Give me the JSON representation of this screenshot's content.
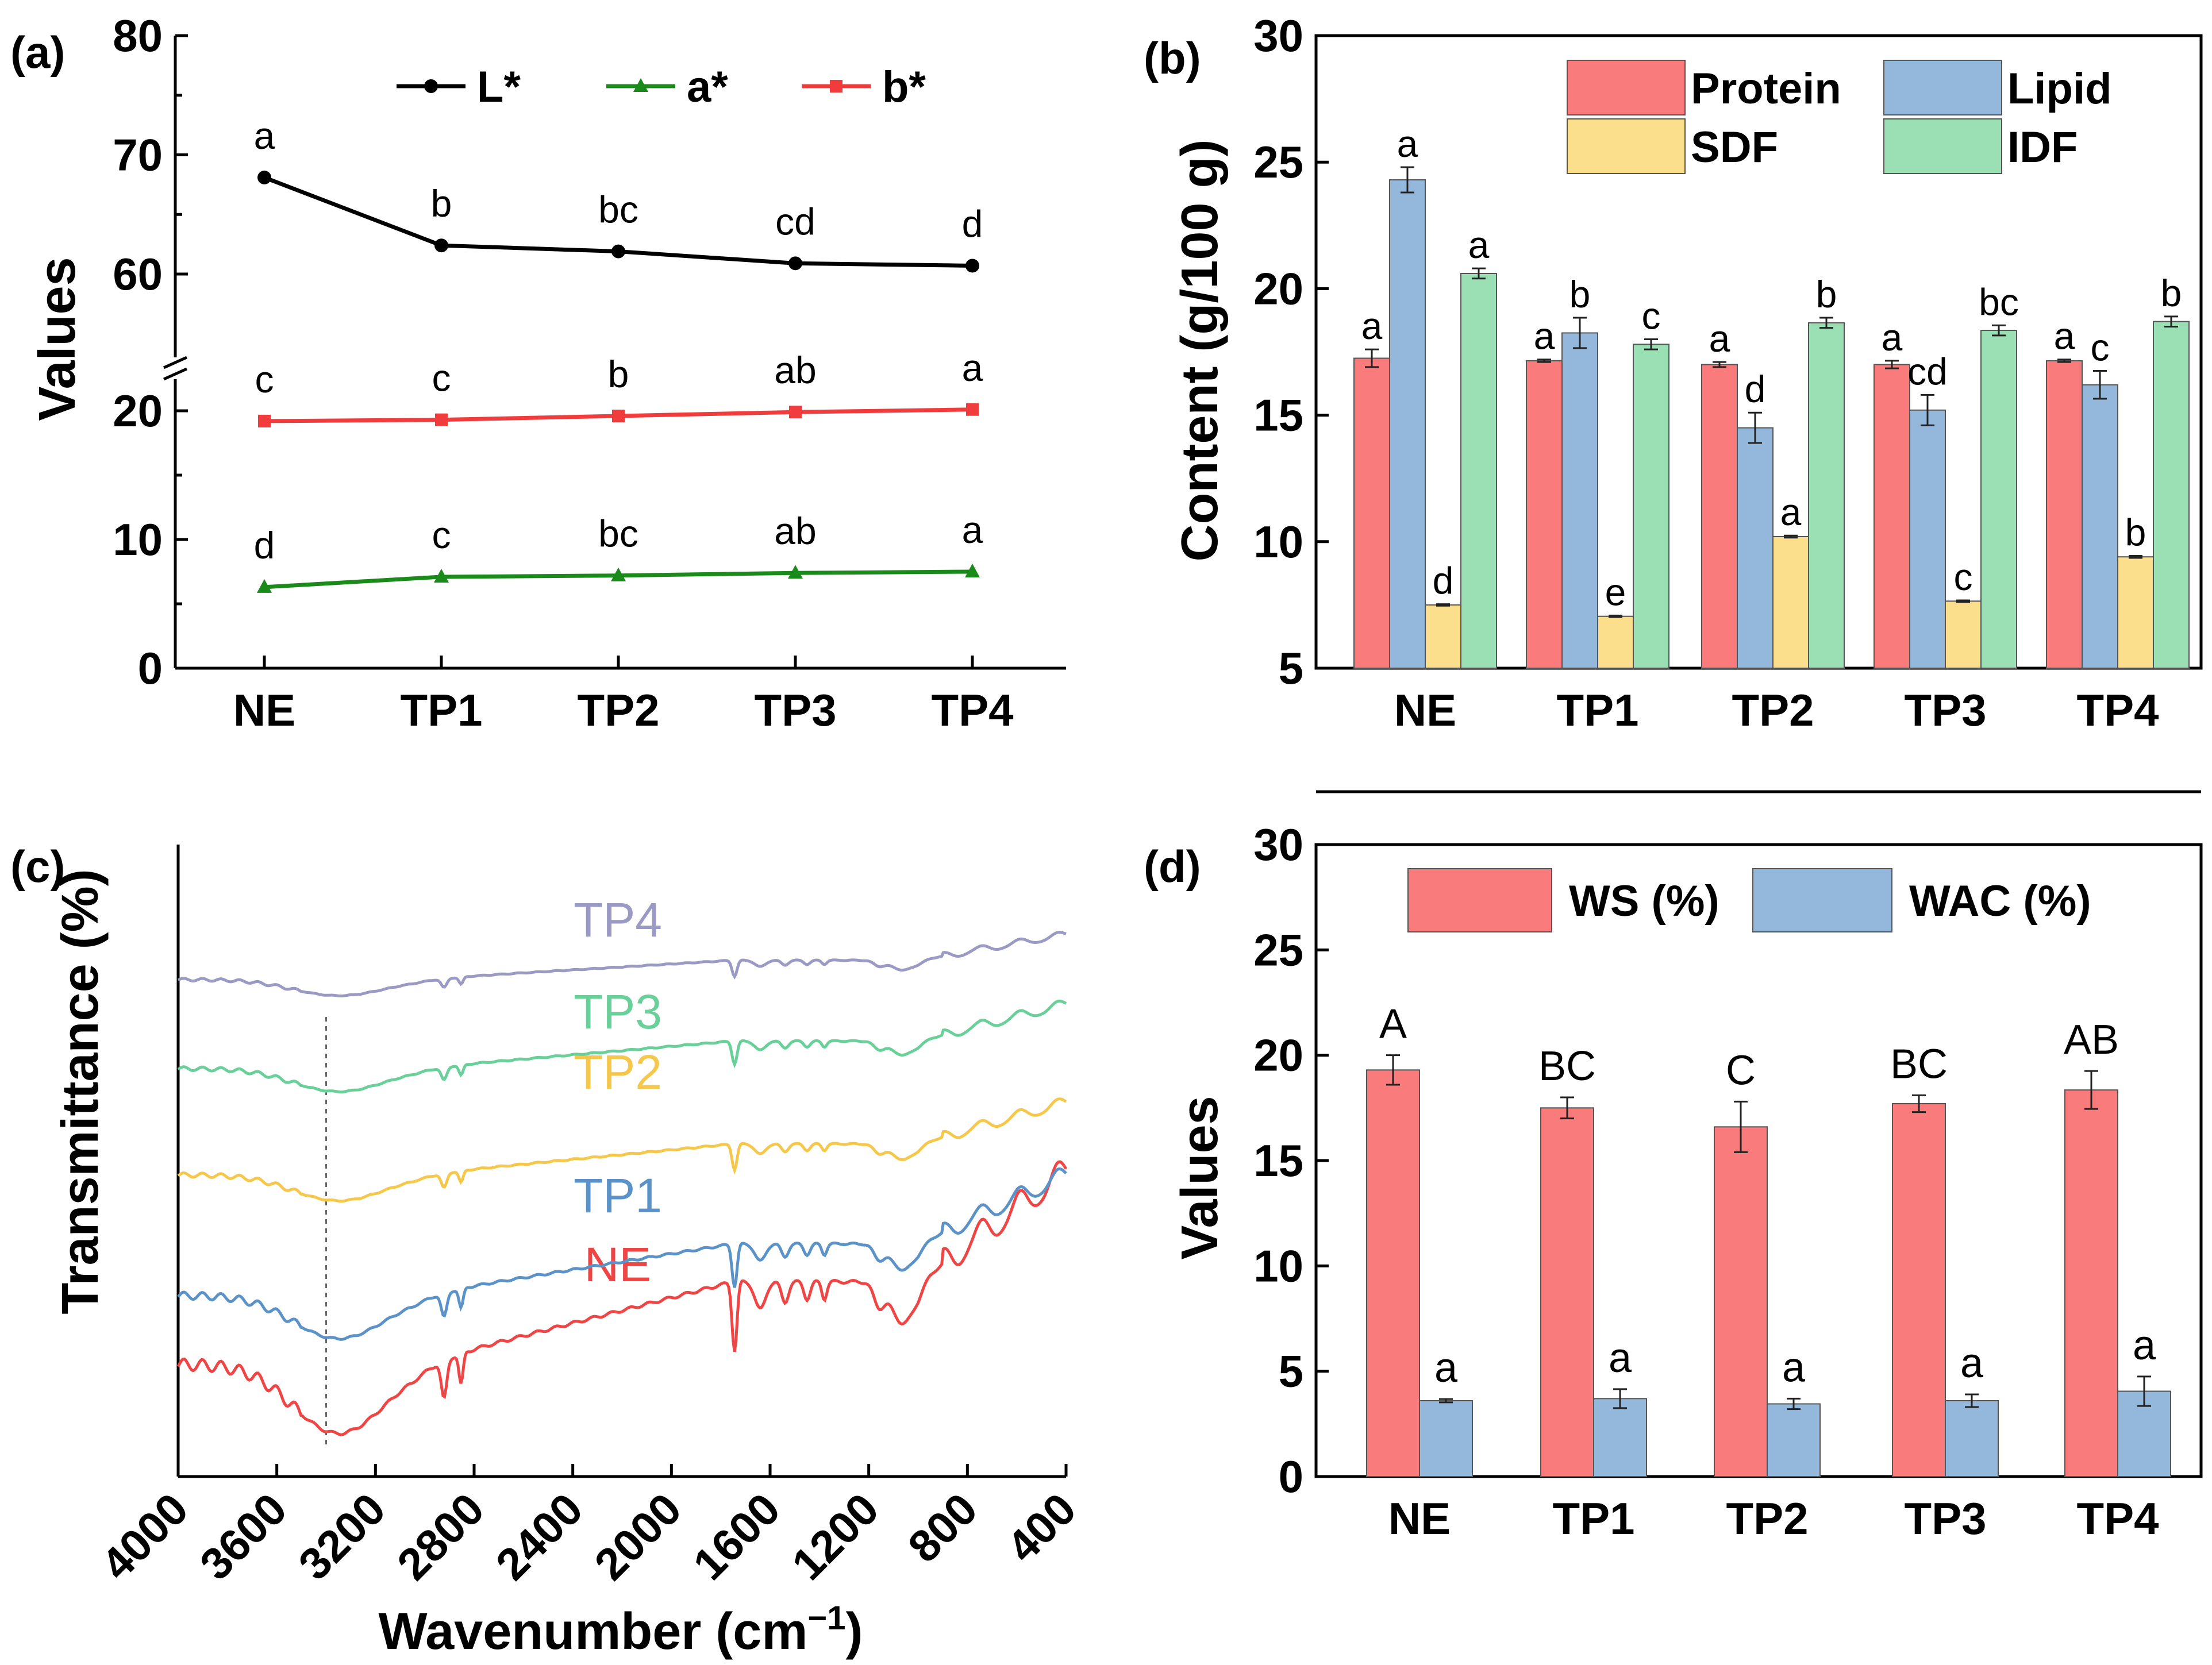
{
  "chart_data": [
    {
      "panel": "(a)",
      "type": "line",
      "categories": [
        "NE",
        "TP1",
        "TP2",
        "TP3",
        "TP4"
      ],
      "ylabel": "Values",
      "xlabel": "",
      "axis_break": [
        22,
        56
      ],
      "ylim": [
        0,
        80
      ],
      "yticks": [
        0,
        10,
        20,
        60,
        70,
        80
      ],
      "series": [
        {
          "name": "L*",
          "color": "#000000",
          "marker": "circle",
          "values": [
            68.1,
            62.4,
            61.9,
            60.9,
            60.7
          ],
          "letters": [
            "a",
            "b",
            "bc",
            "cd",
            "d"
          ]
        },
        {
          "name": "a*",
          "color": "#1a8a1a",
          "marker": "triangle",
          "values": [
            6.3,
            7.1,
            7.2,
            7.4,
            7.5
          ],
          "letters": [
            "d",
            "c",
            "bc",
            "ab",
            "a"
          ]
        },
        {
          "name": "b*",
          "color": "#f03c3c",
          "marker": "square",
          "values": [
            19.2,
            19.3,
            19.6,
            19.9,
            20.1
          ],
          "letters": [
            "c",
            "c",
            "b",
            "ab",
            "a"
          ]
        }
      ]
    },
    {
      "panel": "(b)",
      "type": "bar",
      "categories": [
        "NE",
        "TP1",
        "TP2",
        "TP3",
        "TP4"
      ],
      "ylabel": "Content (g/100 g)",
      "xlabel": "",
      "ylim": [
        5,
        30
      ],
      "yticks": [
        5,
        10,
        15,
        20,
        25,
        30
      ],
      "series": [
        {
          "name": "Protein",
          "color": "#f97b7b",
          "values": [
            17.25,
            17.15,
            17.0,
            17.0,
            17.15
          ],
          "errors": [
            0.35,
            0.05,
            0.1,
            0.15,
            0.05
          ],
          "letters": [
            "a",
            "a",
            "a",
            "a",
            "a"
          ]
        },
        {
          "name": "Lipid",
          "color": "#94b8dc",
          "values": [
            24.3,
            18.25,
            14.5,
            15.2,
            16.2
          ],
          "errors": [
            0.5,
            0.6,
            0.6,
            0.6,
            0.55
          ],
          "letters": [
            "a",
            "b",
            "d",
            "cd",
            "c"
          ]
        },
        {
          "name": "SDF",
          "color": "#fbdf8c",
          "values": [
            7.5,
            7.05,
            10.2,
            7.65,
            9.4
          ],
          "errors": [
            0.03,
            0.03,
            0.04,
            0.03,
            0.04
          ],
          "letters": [
            "d",
            "e",
            "a",
            "c",
            "b"
          ]
        },
        {
          "name": "IDF",
          "color": "#9be0b4",
          "values": [
            20.6,
            17.8,
            18.65,
            18.35,
            18.7
          ],
          "errors": [
            0.2,
            0.2,
            0.2,
            0.2,
            0.2
          ],
          "letters": [
            "a",
            "c",
            "b",
            "bc",
            "b"
          ]
        }
      ]
    },
    {
      "panel": "(c)",
      "type": "line",
      "xlabel": "Wavenumber (cm",
      "xlabel_sup": "−1",
      "xlabel_close": ")",
      "ylabel": "Transmittance (%)",
      "xlim": [
        4000,
        400
      ],
      "xticks": [
        4000,
        3600,
        3200,
        2800,
        2400,
        2000,
        1600,
        1200,
        800,
        400
      ],
      "reference_line": 3400,
      "series": [
        {
          "name": "NE",
          "color": "#f04545"
        },
        {
          "name": "TP1",
          "color": "#5b93c9"
        },
        {
          "name": "TP2",
          "color": "#f5c84c"
        },
        {
          "name": "TP3",
          "color": "#6ad09a"
        },
        {
          "name": "TP4",
          "color": "#9a9ac4"
        }
      ]
    },
    {
      "panel": "(d)",
      "type": "bar",
      "categories": [
        "NE",
        "TP1",
        "TP2",
        "TP3",
        "TP4"
      ],
      "ylabel": "Values",
      "xlabel": "",
      "ylim": [
        0,
        30
      ],
      "yticks": [
        0,
        5,
        10,
        15,
        20,
        25,
        30
      ],
      "series": [
        {
          "name": "WS (%)",
          "color": "#f97b7b",
          "values": [
            19.3,
            17.5,
            16.6,
            17.7,
            18.35
          ],
          "errors": [
            0.7,
            0.5,
            1.2,
            0.4,
            0.9
          ],
          "letters": [
            "A",
            "BC",
            "C",
            "BC",
            "AB"
          ]
        },
        {
          "name": "WAC (%)",
          "color": "#94b8dc",
          "values": [
            3.6,
            3.7,
            3.45,
            3.6,
            4.05
          ],
          "errors": [
            0.08,
            0.45,
            0.25,
            0.3,
            0.7
          ],
          "letters": [
            "a",
            "a",
            "a",
            "a",
            "a"
          ]
        }
      ]
    }
  ]
}
